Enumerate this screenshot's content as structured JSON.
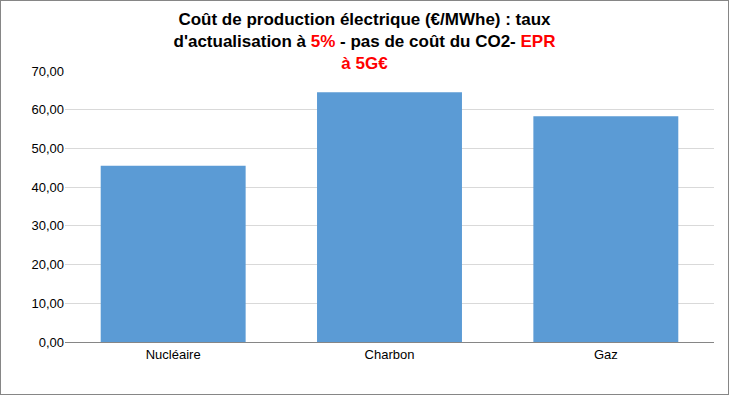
{
  "chart_data": {
    "type": "bar",
    "title": [
      {
        "text": "Coût de production électrique (€/MWhe) : taux d'actualisation à ",
        "color": "#000000"
      },
      {
        "text": "5%",
        "color": "#ff0000"
      },
      {
        "text": " - pas de coût du CO2- ",
        "color": "#000000"
      },
      {
        "text": "EPR à 5G€",
        "color": "#ff0000"
      }
    ],
    "categories": [
      "Nucléaire",
      "Charbon",
      "Gaz"
    ],
    "values": [
      45.5,
      64.5,
      58.3
    ],
    "color": "#5b9bd5",
    "ylim": [
      0,
      70
    ],
    "yticks": [
      {
        "value": 0,
        "label": "0,00"
      },
      {
        "value": 10,
        "label": "10,00"
      },
      {
        "value": 20,
        "label": "20,00"
      },
      {
        "value": 30,
        "label": "30,00"
      },
      {
        "value": 40,
        "label": "40,00"
      },
      {
        "value": 50,
        "label": "50,00"
      },
      {
        "value": 60,
        "label": "60,00"
      },
      {
        "value": 70,
        "label": "70,00"
      }
    ],
    "grid": true
  }
}
